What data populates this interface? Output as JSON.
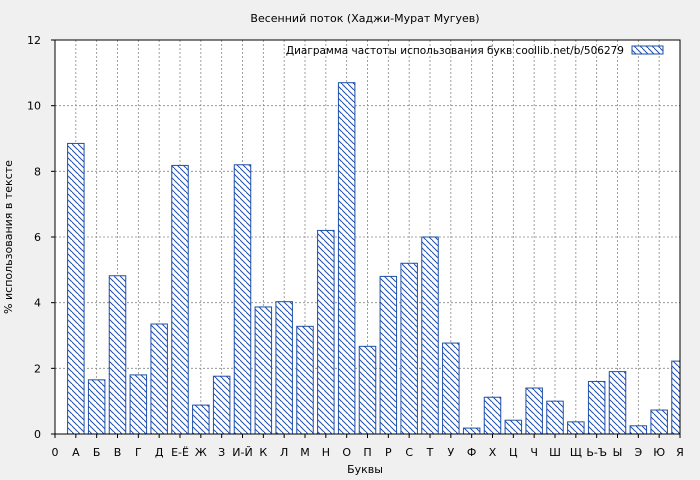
{
  "chart_data": {
    "type": "bar",
    "title": "Весенний поток (Хаджи-Мурат Мугуев)",
    "xlabel": "Буквы",
    "ylabel": "% использования в тексте",
    "ylim": [
      0,
      12
    ],
    "yticks": [
      0,
      2,
      4,
      6,
      8,
      10,
      12
    ],
    "grid": true,
    "legend_position": "top-right",
    "legend_label": "Диаграмма частоты использования букв  coollib.net/b/506279",
    "bar_color": "#1f4fa8",
    "categories": [
      "0",
      "А",
      "Б",
      "В",
      "Г",
      "Д",
      "Е-Ё",
      "Ж",
      "З",
      "И-Й",
      "К",
      "Л",
      "М",
      "Н",
      "О",
      "П",
      "Р",
      "С",
      "Т",
      "У",
      "Ф",
      "Х",
      "Ц",
      "Ч",
      "Ш",
      "Щ",
      "Ь-Ъ",
      "Ы",
      "Э",
      "Ю",
      "Я"
    ],
    "values": [
      0,
      8.85,
      1.65,
      4.82,
      1.8,
      3.35,
      8.18,
      0.88,
      1.76,
      8.2,
      3.87,
      4.03,
      3.28,
      6.2,
      10.7,
      2.67,
      4.8,
      5.2,
      6.0,
      2.77,
      0.18,
      1.12,
      0.42,
      1.4,
      1.0,
      0.37,
      1.6,
      1.9,
      0.25,
      0.73,
      2.22
    ]
  }
}
